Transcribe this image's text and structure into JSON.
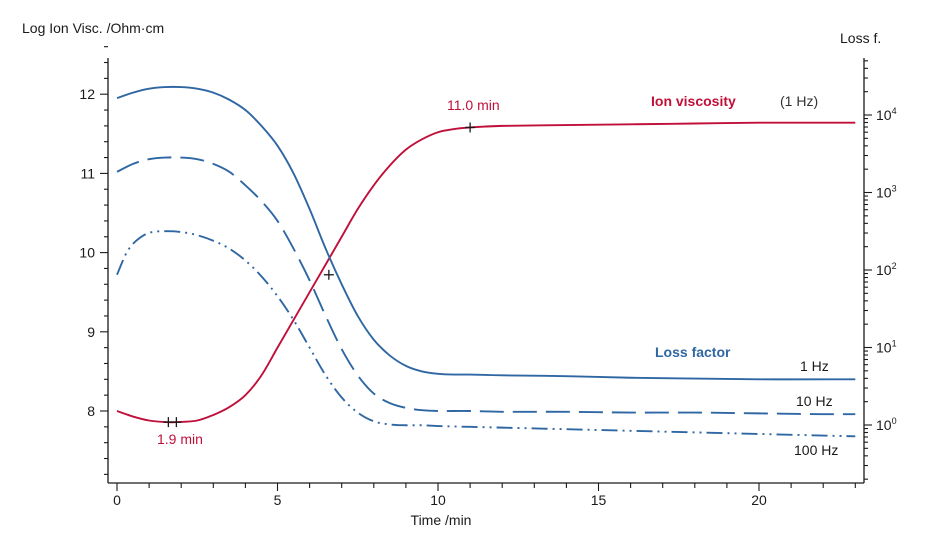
{
  "chart_data": {
    "type": "line",
    "xlabel": "Time /min",
    "ylabel_left": "Log Ion Visc. /Ohm·cm",
    "ylabel_right": "Loss f.",
    "xlim": [
      0,
      23
    ],
    "ylim_left": [
      7.0,
      12.6
    ],
    "right_axis_scale": "log",
    "x_ticks": [
      0,
      5,
      10,
      15,
      20
    ],
    "y_ticks_left": [
      8,
      9,
      10,
      11,
      12
    ],
    "y_ticks_right": [
      {
        "base": "10",
        "exp": "0",
        "value": 1
      },
      {
        "base": "10",
        "exp": "1",
        "value": 10
      },
      {
        "base": "10",
        "exp": "2",
        "value": 100
      },
      {
        "base": "10",
        "exp": "3",
        "value": 1000
      },
      {
        "base": "10",
        "exp": "4",
        "value": 10000
      }
    ],
    "grid": false,
    "series": [
      {
        "name": "Ion viscosity",
        "axis": "left",
        "color": "#c0103a",
        "dash": "solid",
        "x": [
          0,
          0.5,
          1,
          1.5,
          1.9,
          2.5,
          3,
          3.5,
          4,
          4.5,
          5,
          5.5,
          6,
          6.5,
          7,
          7.5,
          8,
          8.5,
          9,
          9.5,
          10,
          10.5,
          11,
          12,
          14,
          16,
          18,
          20,
          22,
          23
        ],
        "y": [
          8.0,
          7.93,
          7.88,
          7.86,
          7.86,
          7.88,
          7.95,
          8.05,
          8.2,
          8.45,
          8.8,
          9.15,
          9.5,
          9.85,
          10.2,
          10.55,
          10.85,
          11.1,
          11.3,
          11.43,
          11.52,
          11.56,
          11.58,
          11.6,
          11.61,
          11.62,
          11.63,
          11.64,
          11.64,
          11.64
        ]
      },
      {
        "name": "1 Hz",
        "axis": "left",
        "color": "#2f67a3",
        "dash": "solid",
        "x": [
          0,
          0.5,
          1,
          1.5,
          2,
          2.5,
          3,
          3.5,
          4,
          4.5,
          5,
          5.5,
          6,
          6.5,
          7,
          7.5,
          8,
          8.5,
          9,
          9.5,
          10,
          10.5,
          11,
          12,
          14,
          16,
          18,
          20,
          22,
          23
        ],
        "y": [
          11.95,
          12.02,
          12.07,
          12.09,
          12.09,
          12.07,
          12.02,
          11.93,
          11.8,
          11.6,
          11.35,
          11.0,
          10.55,
          10.05,
          9.6,
          9.2,
          8.9,
          8.7,
          8.57,
          8.5,
          8.47,
          8.46,
          8.46,
          8.45,
          8.44,
          8.42,
          8.41,
          8.4,
          8.4,
          8.4
        ]
      },
      {
        "name": "10 Hz",
        "axis": "left",
        "color": "#2f67a3",
        "dash": "long",
        "x": [
          0,
          0.5,
          1,
          1.5,
          2,
          2.5,
          3,
          3.5,
          4,
          4.5,
          5,
          5.5,
          6,
          6.5,
          7,
          7.5,
          8,
          8.5,
          9,
          9.5,
          10,
          11,
          12,
          14,
          16,
          18,
          20,
          22,
          23
        ],
        "y": [
          11.02,
          11.12,
          11.18,
          11.2,
          11.2,
          11.18,
          11.12,
          11.02,
          10.85,
          10.65,
          10.4,
          10.05,
          9.65,
          9.2,
          8.78,
          8.45,
          8.22,
          8.1,
          8.04,
          8.01,
          8.0,
          8.0,
          7.99,
          7.99,
          7.98,
          7.98,
          7.97,
          7.96,
          7.96
        ]
      },
      {
        "name": "100 Hz",
        "axis": "left",
        "color": "#2f67a3",
        "dash": "dashdotdot",
        "x": [
          0,
          0.3,
          0.6,
          1,
          1.5,
          2,
          2.5,
          3,
          3.5,
          4,
          4.5,
          5,
          5.5,
          6,
          6.5,
          7,
          7.5,
          8,
          8.5,
          9,
          9.5,
          10,
          11,
          12,
          14,
          16,
          18,
          20,
          22,
          23
        ],
        "y": [
          9.72,
          10.0,
          10.15,
          10.25,
          10.27,
          10.26,
          10.22,
          10.15,
          10.05,
          9.9,
          9.7,
          9.45,
          9.15,
          8.8,
          8.45,
          8.17,
          7.98,
          7.87,
          7.83,
          7.82,
          7.82,
          7.81,
          7.8,
          7.79,
          7.77,
          7.75,
          7.73,
          7.71,
          7.69,
          7.68
        ]
      }
    ],
    "markers": [
      {
        "x": 1.6,
        "y": 7.86
      },
      {
        "x": 1.85,
        "y": 7.86
      },
      {
        "x": 6.6,
        "y": 9.72
      },
      {
        "x": 11.0,
        "y": 11.58
      }
    ],
    "annotations": {
      "ion_label": "Ion viscosity",
      "ion_freq": "(1 Hz)",
      "loss_label": "Loss factor",
      "t_min_label": "1.9 min",
      "t_max_label": "11.0 min",
      "hz1": "1 Hz",
      "hz10": "10 Hz",
      "hz100": "100 Hz"
    }
  }
}
